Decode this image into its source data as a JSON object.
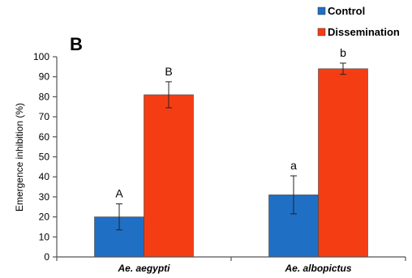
{
  "chart_data": {
    "type": "bar",
    "panel_label": "B",
    "categories": [
      "Ae. aegypti",
      "Ae. albopictus"
    ],
    "series": [
      {
        "name": "Control",
        "color": "#1f6fc5",
        "values": [
          20,
          31
        ],
        "error": [
          6.5,
          9.5
        ],
        "letters": [
          "A",
          "a"
        ]
      },
      {
        "name": "Dissemination",
        "color": "#f53d14",
        "values": [
          81,
          94
        ],
        "error": [
          6.5,
          2.8
        ],
        "letters": [
          "B",
          "b"
        ]
      }
    ],
    "title": "",
    "xlabel": "",
    "ylabel": "Emergence inhibition (%)",
    "ylim": [
      0,
      100
    ],
    "yticks": [
      "0",
      "10",
      "20",
      "30",
      "40",
      "50",
      "60",
      "70",
      "80",
      "90",
      "100"
    ],
    "grid": false,
    "legend_position": "top-right"
  }
}
